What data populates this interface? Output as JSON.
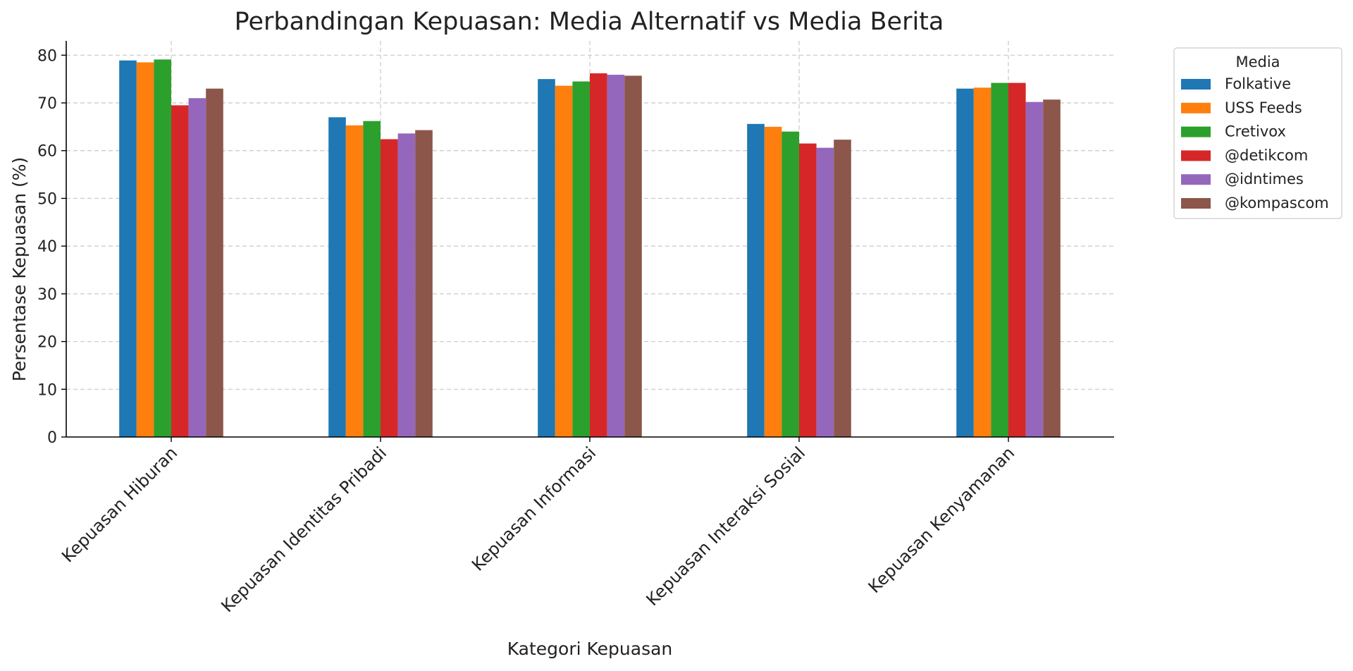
{
  "chart_data": {
    "type": "bar",
    "title": "Perbandingan Kepuasan: Media Alternatif vs Media Berita",
    "xlabel": "Kategori Kepuasan",
    "ylabel": "Persentase Kepuasan (%)",
    "ylim": [
      0,
      83
    ],
    "yticks": [
      0,
      10,
      20,
      30,
      40,
      50,
      60,
      70,
      80
    ],
    "grid": true,
    "legend": {
      "title": "Media",
      "placement": "outside-top-right"
    },
    "categories": [
      "Kepuasan Hiburan",
      "Kepuasan Identitas Pribadi",
      "Kepuasan Informasi",
      "Kepuasan Interaksi Sosial",
      "Kepuasan Kenyamanan"
    ],
    "series": [
      {
        "name": "Folkative",
        "color": "#1f77b4",
        "values": [
          78.9,
          67.0,
          75.0,
          65.6,
          73.0
        ]
      },
      {
        "name": "USS Feeds",
        "color": "#ff7f0e",
        "values": [
          78.5,
          65.3,
          73.6,
          65.0,
          73.2
        ]
      },
      {
        "name": "Cretivox",
        "color": "#2ca02c",
        "values": [
          79.1,
          66.2,
          74.5,
          64.0,
          74.2
        ]
      },
      {
        "name": "@detikcom",
        "color": "#d62728",
        "values": [
          69.5,
          62.4,
          76.2,
          61.5,
          74.2
        ]
      },
      {
        "name": "@idntimes",
        "color": "#9467bd",
        "values": [
          71.0,
          63.6,
          75.9,
          60.6,
          70.2
        ]
      },
      {
        "name": "@kompascom",
        "color": "#8c564b",
        "values": [
          73.0,
          64.3,
          75.7,
          62.3,
          70.7
        ]
      }
    ]
  }
}
